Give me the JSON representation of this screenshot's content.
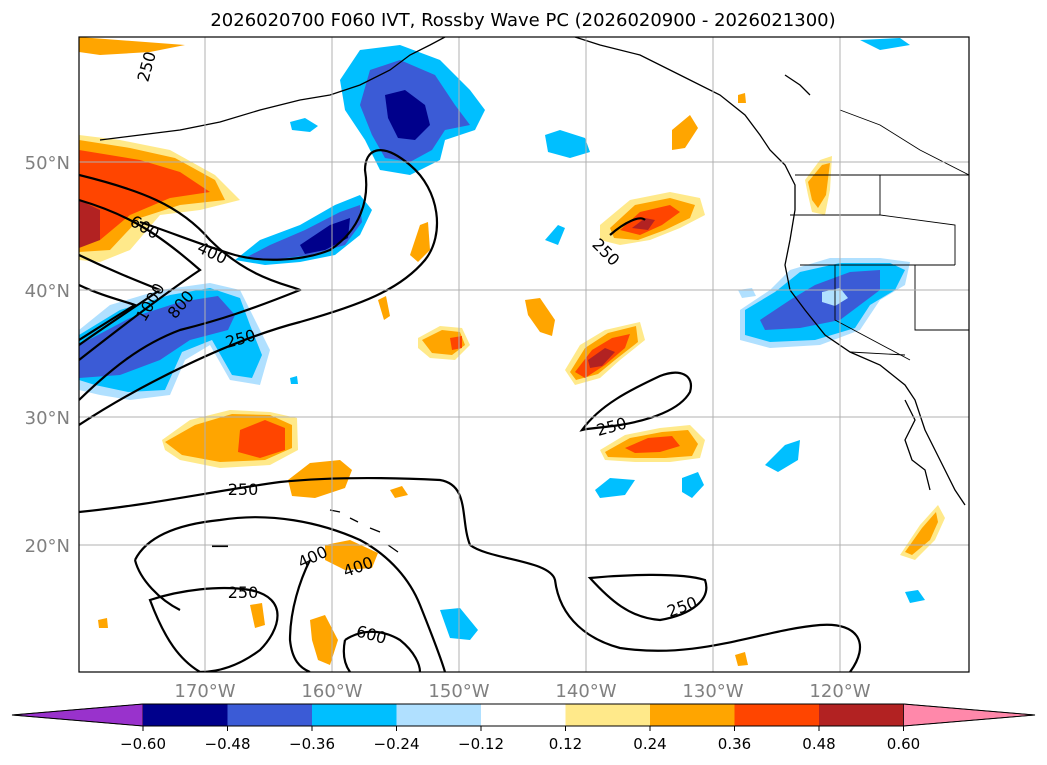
{
  "title": "2026020700 F060 IVT, Rossby Wave PC (2026020900 - 2026021300)",
  "lat_labels": [
    "50°N",
    "40°N",
    "30°N",
    "20°N"
  ],
  "lon_labels": [
    "170°W",
    "160°W",
    "150°W",
    "140°W",
    "130°W",
    "120°W"
  ],
  "contour_labels": [
    "250",
    "600",
    "400",
    "1000",
    "800",
    "250",
    "250",
    "250",
    "250",
    "400",
    "400",
    "250",
    "600",
    "250"
  ],
  "colorbar": {
    "colors": [
      "#9932cc",
      "#00008b",
      "#3b5bd6",
      "#00bfff",
      "#b0e0ff",
      "#ffffff",
      "#ffe98a",
      "#ffa500",
      "#ff4500",
      "#b22222",
      "#ff88aa"
    ],
    "tick_labels": [
      "−0.60",
      "−0.48",
      "−0.36",
      "−0.24",
      "−0.12",
      "0.12",
      "0.24",
      "0.36",
      "0.48",
      "0.60"
    ]
  },
  "colors": {
    "neg_strong": "#00008b",
    "neg_med": "#3b5bd6",
    "neg_weak": "#00bfff",
    "neg_faint": "#b0e0ff",
    "pos_faint": "#ffe98a",
    "pos_weak": "#ffa500",
    "pos_med": "#ff4500",
    "pos_strong": "#b22222"
  }
}
